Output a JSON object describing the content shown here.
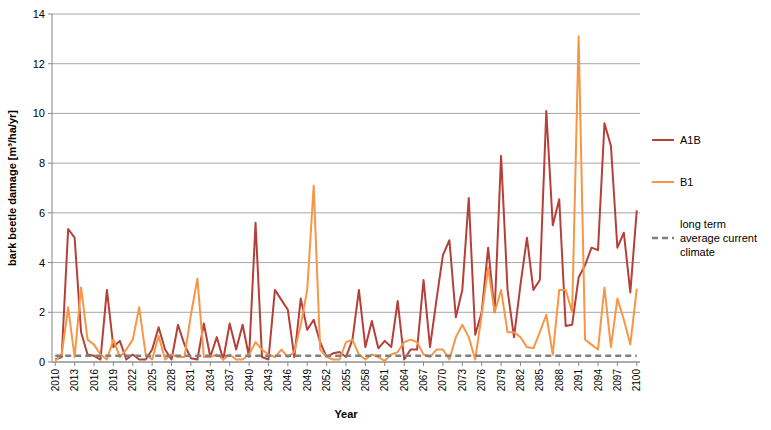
{
  "chart_data": {
    "type": "line",
    "x_label": "Year",
    "y_label": "bark beetle damage [m³/ha/yr]",
    "x": [
      2010,
      2011,
      2012,
      2013,
      2014,
      2015,
      2016,
      2017,
      2018,
      2019,
      2020,
      2021,
      2022,
      2023,
      2024,
      2025,
      2026,
      2027,
      2028,
      2029,
      2030,
      2031,
      2032,
      2033,
      2034,
      2035,
      2036,
      2037,
      2038,
      2039,
      2040,
      2041,
      2042,
      2043,
      2044,
      2045,
      2046,
      2047,
      2048,
      2049,
      2050,
      2051,
      2052,
      2053,
      2054,
      2055,
      2056,
      2057,
      2058,
      2059,
      2060,
      2061,
      2062,
      2063,
      2064,
      2065,
      2066,
      2067,
      2068,
      2069,
      2070,
      2071,
      2072,
      2073,
      2074,
      2075,
      2076,
      2077,
      2078,
      2079,
      2080,
      2081,
      2082,
      2083,
      2084,
      2085,
      2086,
      2087,
      2088,
      2089,
      2090,
      2091,
      2092,
      2093,
      2094,
      2095,
      2096,
      2097,
      2098,
      2099,
      2100
    ],
    "series": [
      {
        "name": "A1B",
        "color": "#b5403a",
        "line_style": "solid",
        "values": [
          0.1,
          0.2,
          5.35,
          5.0,
          1.2,
          0.3,
          0.25,
          0.1,
          2.9,
          0.6,
          0.85,
          0.1,
          0.3,
          0.1,
          0.1,
          0.5,
          1.4,
          0.5,
          0.1,
          1.5,
          0.7,
          0.15,
          0.1,
          1.55,
          0.2,
          1.0,
          0.1,
          1.55,
          0.5,
          1.5,
          0.2,
          5.6,
          0.2,
          0.1,
          2.9,
          2.5,
          2.1,
          0.2,
          2.55,
          1.3,
          1.7,
          0.8,
          0.2,
          0.35,
          0.4,
          0.2,
          0.9,
          2.9,
          0.6,
          1.65,
          0.55,
          0.85,
          0.6,
          2.45,
          0.1,
          0.5,
          0.5,
          3.3,
          0.6,
          2.5,
          4.3,
          4.9,
          1.8,
          2.9,
          6.6,
          1.1,
          2.0,
          4.6,
          2.0,
          8.3,
          2.9,
          1.0,
          3.1,
          5.0,
          2.9,
          3.3,
          10.1,
          5.5,
          6.55,
          1.45,
          1.5,
          3.4,
          3.9,
          4.6,
          4.5,
          9.6,
          8.7,
          4.6,
          5.2,
          2.8,
          6.1
        ]
      },
      {
        "name": "B1",
        "color": "#f79646",
        "line_style": "solid",
        "values": [
          0.05,
          0.3,
          2.2,
          0.2,
          3.0,
          0.9,
          0.7,
          0.3,
          0.1,
          0.9,
          0.2,
          0.5,
          0.9,
          2.2,
          0.3,
          0.1,
          1.05,
          0.1,
          0.3,
          0.2,
          0.2,
          1.9,
          3.35,
          0.2,
          0.2,
          0.3,
          0.1,
          0.3,
          0.1,
          0.1,
          0.3,
          0.8,
          0.5,
          0.3,
          0.2,
          0.5,
          0.2,
          0.4,
          1.5,
          2.9,
          7.1,
          0.5,
          0.2,
          0.1,
          0.1,
          0.8,
          0.9,
          0.3,
          0.1,
          0.3,
          0.2,
          0.05,
          0.3,
          0.4,
          0.8,
          0.9,
          0.8,
          0.3,
          0.2,
          0.5,
          0.5,
          0.1,
          1.0,
          1.5,
          1.0,
          0.1,
          1.9,
          3.8,
          2.0,
          2.9,
          1.2,
          1.2,
          1.0,
          0.6,
          0.55,
          1.2,
          1.9,
          0.3,
          2.9,
          2.9,
          2.0,
          13.1,
          0.9,
          0.7,
          0.5,
          3.0,
          0.6,
          2.55,
          1.7,
          0.7,
          2.95
        ]
      },
      {
        "name": "long term average current climate",
        "color": "#7f7f7f",
        "line_style": "dashed",
        "values": [
          0.25,
          0.25,
          0.25,
          0.25,
          0.25,
          0.25,
          0.25,
          0.25,
          0.25,
          0.25,
          0.25,
          0.25,
          0.25,
          0.25,
          0.25,
          0.25,
          0.25,
          0.25,
          0.25,
          0.25,
          0.25,
          0.25,
          0.25,
          0.25,
          0.25,
          0.25,
          0.25,
          0.25,
          0.25,
          0.25,
          0.25,
          0.25,
          0.25,
          0.25,
          0.25,
          0.25,
          0.25,
          0.25,
          0.25,
          0.25,
          0.25,
          0.25,
          0.25,
          0.25,
          0.25,
          0.25,
          0.25,
          0.25,
          0.25,
          0.25,
          0.25,
          0.25,
          0.25,
          0.25,
          0.25,
          0.25,
          0.25,
          0.25,
          0.25,
          0.25,
          0.25,
          0.25,
          0.25,
          0.25,
          0.25,
          0.25,
          0.25,
          0.25,
          0.25,
          0.25,
          0.25,
          0.25,
          0.25,
          0.25,
          0.25,
          0.25,
          0.25,
          0.25,
          0.25,
          0.25,
          0.25,
          0.25,
          0.25,
          0.25,
          0.25,
          0.25,
          0.25,
          0.25,
          0.25,
          0.25,
          0.25
        ]
      }
    ],
    "xlim": [
      2009.5,
      2100.5
    ],
    "xticks": [
      2010,
      2013,
      2016,
      2019,
      2022,
      2025,
      2028,
      2031,
      2034,
      2037,
      2040,
      2043,
      2046,
      2049,
      2052,
      2055,
      2058,
      2061,
      2064,
      2067,
      2070,
      2073,
      2076,
      2079,
      2082,
      2085,
      2088,
      2091,
      2094,
      2097,
      2100
    ],
    "ylim": [
      0,
      14
    ],
    "yticks": [
      0,
      2,
      4,
      6,
      8,
      10,
      12,
      14
    ],
    "grid": true,
    "legend": "right"
  }
}
